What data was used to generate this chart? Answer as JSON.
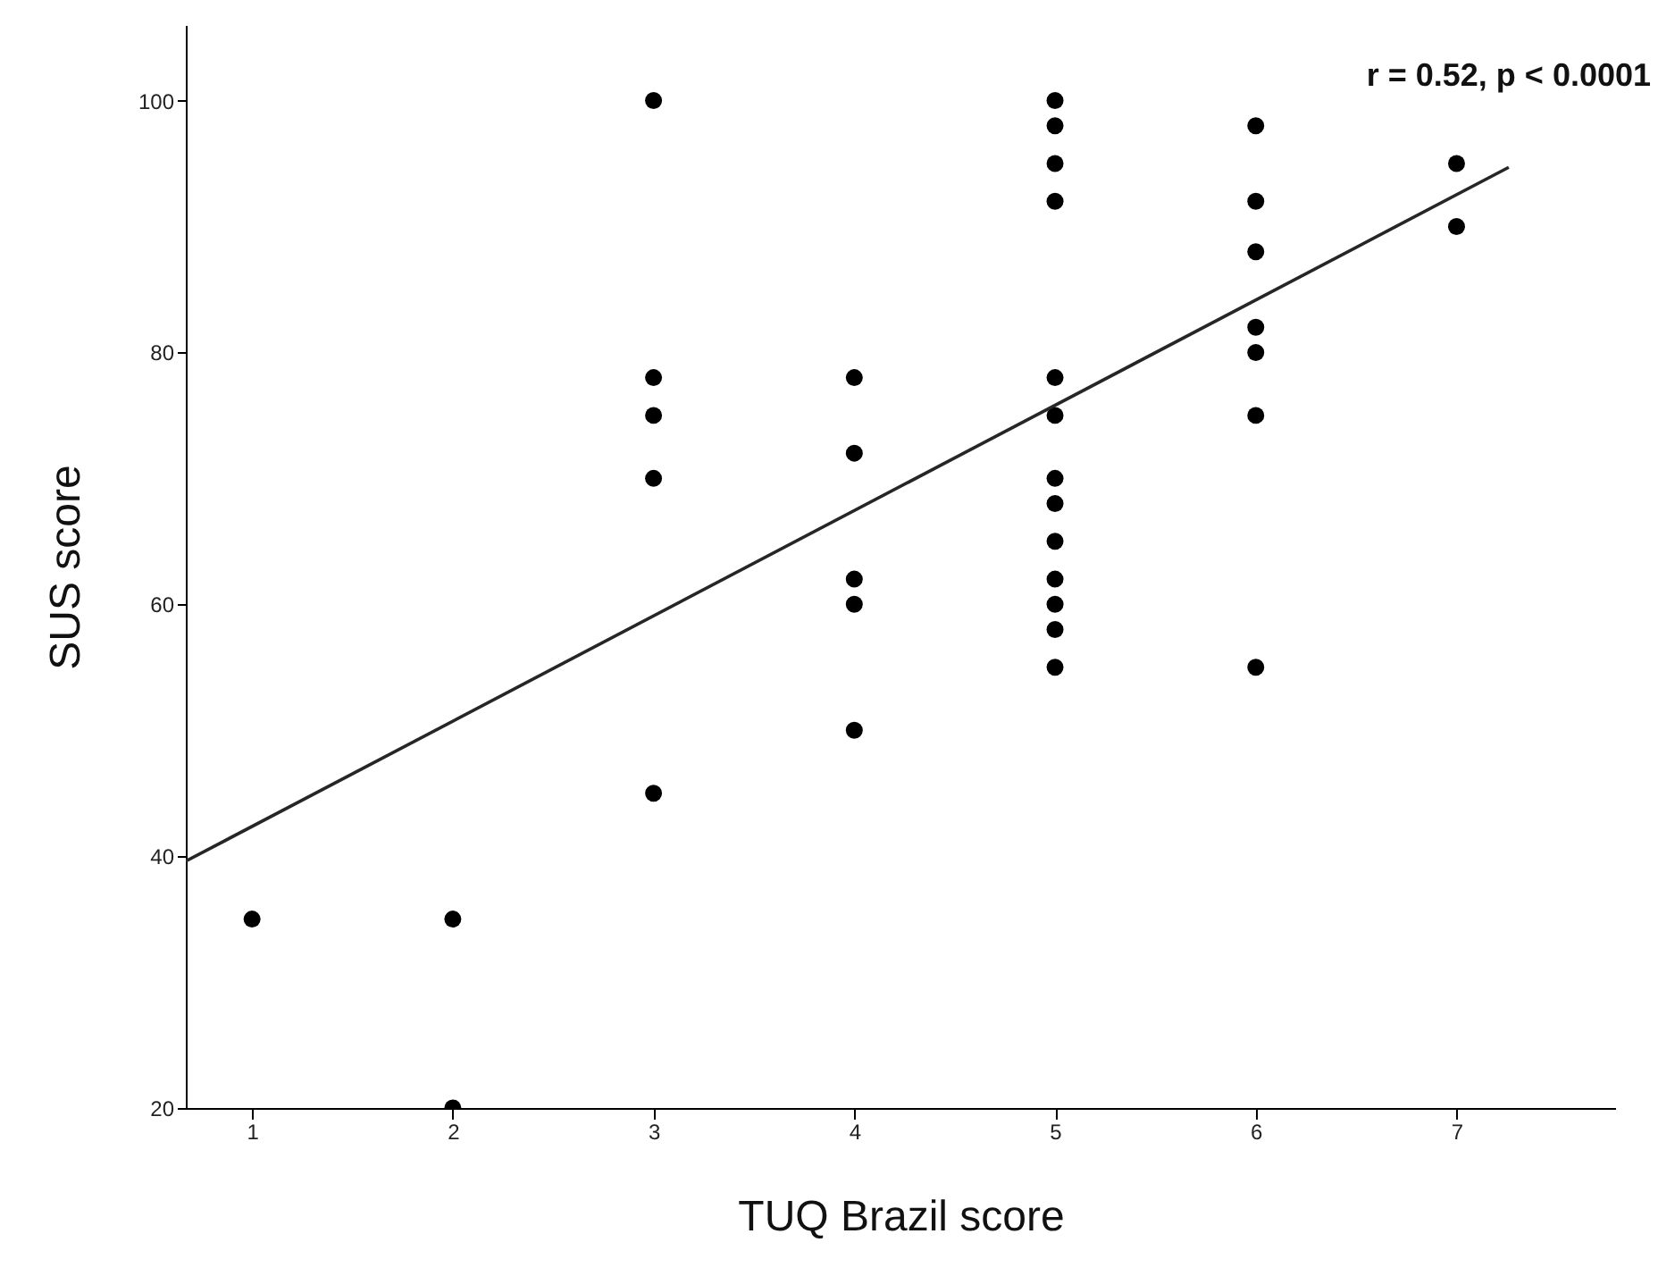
{
  "chart_data": {
    "type": "scatter",
    "xlabel": "TUQ Brazil score",
    "ylabel": "SUS score",
    "annotations": [
      "r = 0.52, p < 0.0001"
    ],
    "xlim": [
      0.67,
      7.79
    ],
    "xticks": [
      1,
      2,
      3,
      4,
      5,
      6,
      7
    ],
    "ylim": [
      20,
      106
    ],
    "yticks": [
      20,
      40,
      60,
      80,
      100
    ],
    "grid": false,
    "series": [
      {
        "marker": "circle",
        "color": "#000000",
        "x": [
          1,
          2,
          2,
          3,
          3,
          3,
          3,
          3,
          4,
          4,
          4,
          4,
          4,
          5,
          5,
          5,
          5,
          5,
          5,
          5,
          5,
          5,
          5,
          5,
          5,
          5,
          6,
          6,
          6,
          6,
          6,
          6,
          6,
          7,
          7
        ],
        "values": [
          35,
          35,
          20,
          100,
          78,
          75,
          70,
          45,
          78,
          72,
          62,
          60,
          50,
          100,
          98,
          95,
          92,
          78,
          75,
          70,
          68,
          65,
          62,
          60,
          58,
          55,
          98,
          92,
          88,
          82,
          80,
          75,
          55,
          95,
          90
        ]
      },
      {
        "type": "line",
        "color": "#262626",
        "x": [
          0.67,
          7.26
        ],
        "values": [
          39.6,
          94.7
        ]
      }
    ]
  }
}
